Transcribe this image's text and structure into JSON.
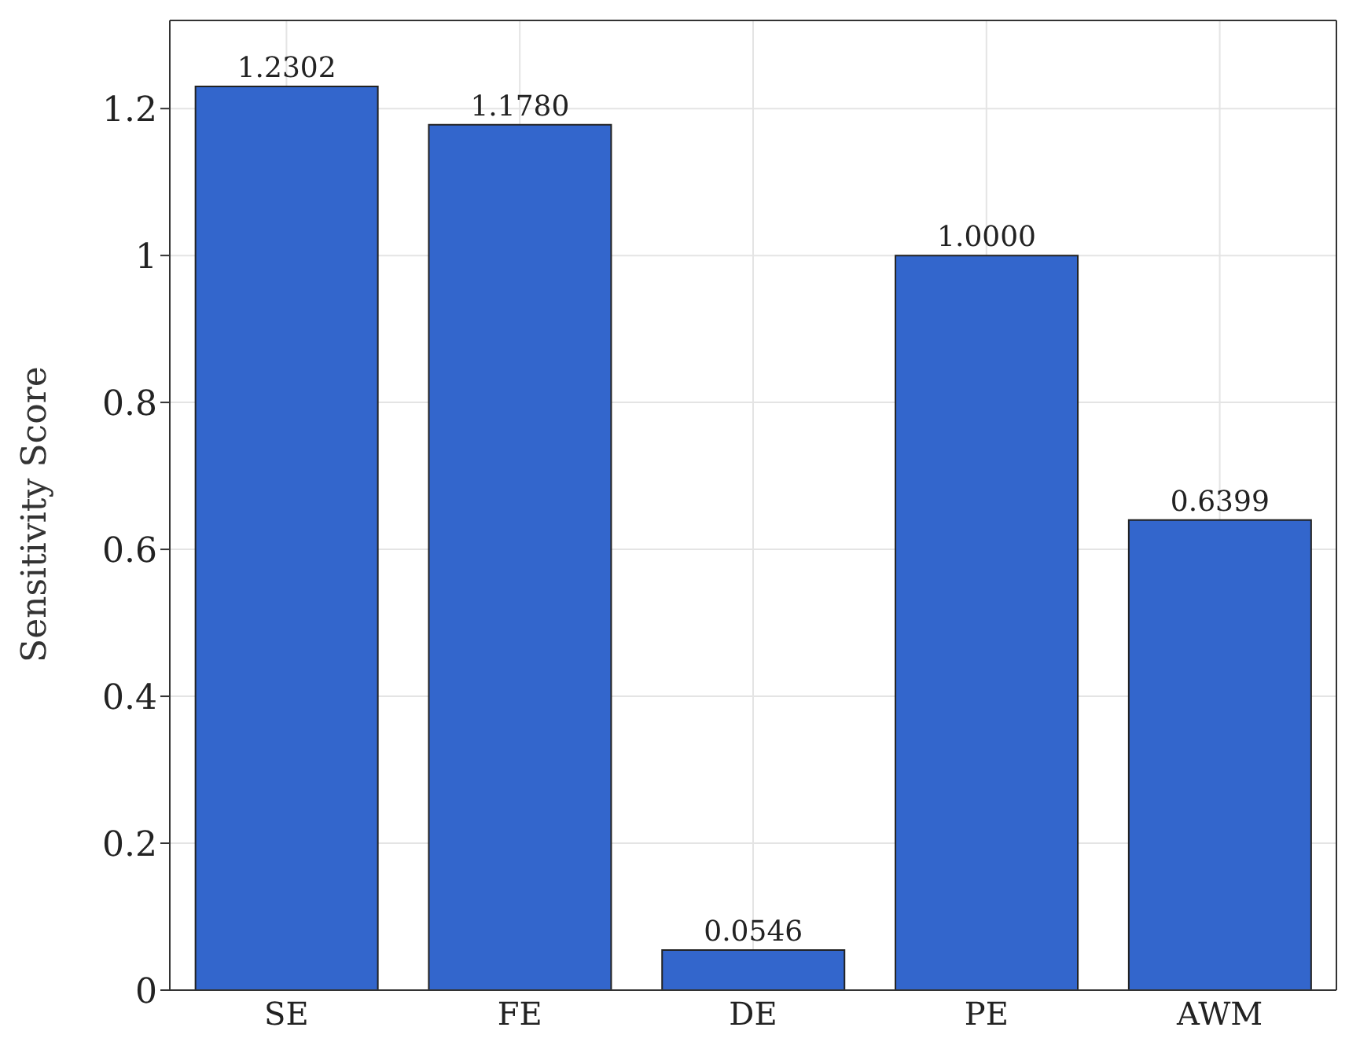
{
  "chart_data": {
    "type": "bar",
    "ylabel": "Sensitivity Score",
    "categories": [
      "SE",
      "FE",
      "DE",
      "PE",
      "AWM"
    ],
    "values": [
      1.2302,
      1.178,
      0.0546,
      1.0,
      0.6399
    ],
    "value_labels": [
      "1.2302",
      "1.1780",
      "0.0546",
      "1.0000",
      "0.6399"
    ],
    "color": "#3366cc",
    "ylim": [
      0,
      1.32
    ],
    "yticks": [
      0,
      0.2,
      0.4,
      0.6,
      0.8,
      1,
      1.2
    ],
    "grid": true
  }
}
